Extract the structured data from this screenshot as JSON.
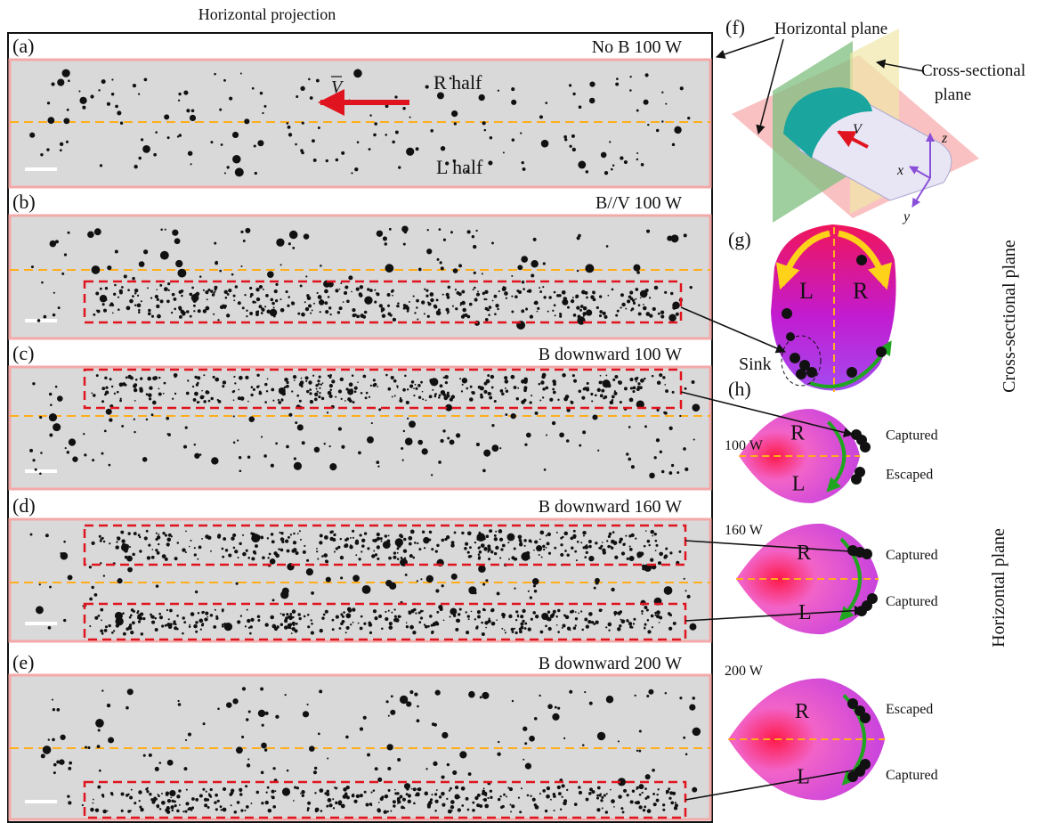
{
  "title": "Horizontal projection",
  "panels": [
    {
      "label": "(a)",
      "condition": "No B 100 W",
      "velocity": "V",
      "r_half": "R half",
      "l_half": "L half"
    },
    {
      "label": "(b)",
      "condition": "B//V 100 W"
    },
    {
      "label": "(c)",
      "condition": "B downward 100 W"
    },
    {
      "label": "(d)",
      "condition": "B downward 160 W"
    },
    {
      "label": "(e)",
      "condition": "B downward 200 W"
    }
  ],
  "schematic": {
    "label": "(f)",
    "horizontal_plane": "Horizontal plane",
    "cross_sectional": "Cross-sectional",
    "plane": "plane",
    "velocity": "V",
    "z": "z",
    "x": "x",
    "y": "y"
  },
  "cross_section": {
    "label": "(g)",
    "left": "L",
    "right": "R",
    "sink": "Sink",
    "side_title": "Cross-sectional plane"
  },
  "horizontal": {
    "label": "(h)",
    "side_title": "Horizontal plane",
    "cases": [
      {
        "power": "100 W",
        "top": "R",
        "bottom": "L",
        "upper_note": "Captured",
        "lower_note": "Escaped"
      },
      {
        "power": "160 W",
        "top": "R",
        "bottom": "L",
        "upper_note": "Captured",
        "lower_note": "Captured"
      },
      {
        "power": "200 W",
        "top": "R",
        "bottom": "L",
        "upper_note": "Escaped",
        "lower_note": "Captured"
      }
    ]
  }
}
